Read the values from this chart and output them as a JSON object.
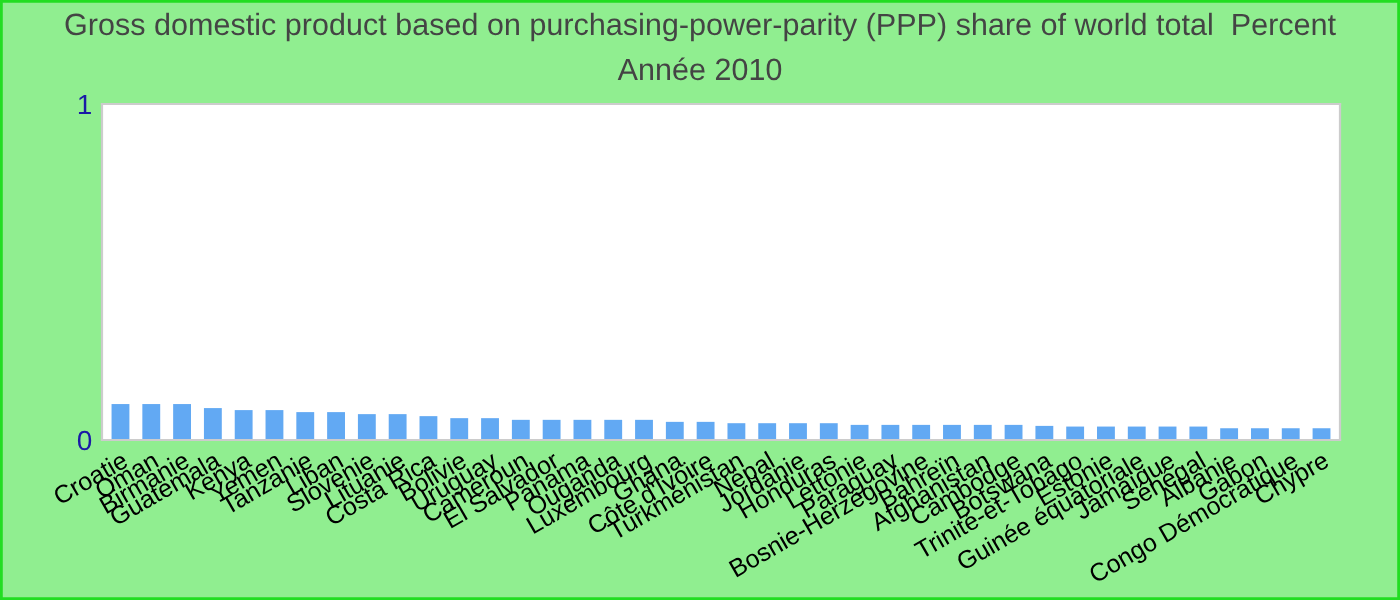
{
  "chart_data": {
    "type": "bar",
    "title": "Gross domestic product based on purchasing-power-parity (PPP) share of world total  Percent",
    "subtitle": "Année 2010",
    "categories": [
      "Croatie",
      "Oman",
      "Birmanie",
      "Guatemala",
      "Kenya",
      "Yemen",
      "Tanzanie",
      "Liban",
      "Slovenie",
      "Lituanie",
      "Costa Rica",
      "Bolivie",
      "Uruguay",
      "Cameroun",
      "El Salvador",
      "Panama",
      "Ouganda",
      "Luxembourg",
      "Ghana",
      "Côte d'Ivoire",
      "Turkménistan",
      "Népal",
      "Jordanie",
      "Honduras",
      "Lettonie",
      "Paraguay",
      "Bosnie-Herzégovine",
      "Bahreïn",
      "Afghanistan",
      "Cambodge",
      "Botswana",
      "Trinité-et-Tobago",
      "Estonie",
      "Guinée équatoriale",
      "Jamaïque",
      "Sénégal",
      "Albanie",
      "Gabon",
      "Congo Démocratique",
      "Chypre"
    ],
    "values": [
      0.107,
      0.107,
      0.107,
      0.095,
      0.089,
      0.089,
      0.083,
      0.083,
      0.077,
      0.077,
      0.071,
      0.065,
      0.065,
      0.06,
      0.06,
      0.06,
      0.06,
      0.06,
      0.054,
      0.054,
      0.05,
      0.05,
      0.05,
      0.05,
      0.045,
      0.045,
      0.045,
      0.045,
      0.045,
      0.045,
      0.042,
      0.04,
      0.04,
      0.04,
      0.04,
      0.04,
      0.035,
      0.035,
      0.035,
      0.035
    ],
    "color": "#62a9f3",
    "ylim": [
      0,
      1
    ],
    "yticks": [
      0,
      1
    ],
    "grid": false,
    "legend": false
  }
}
